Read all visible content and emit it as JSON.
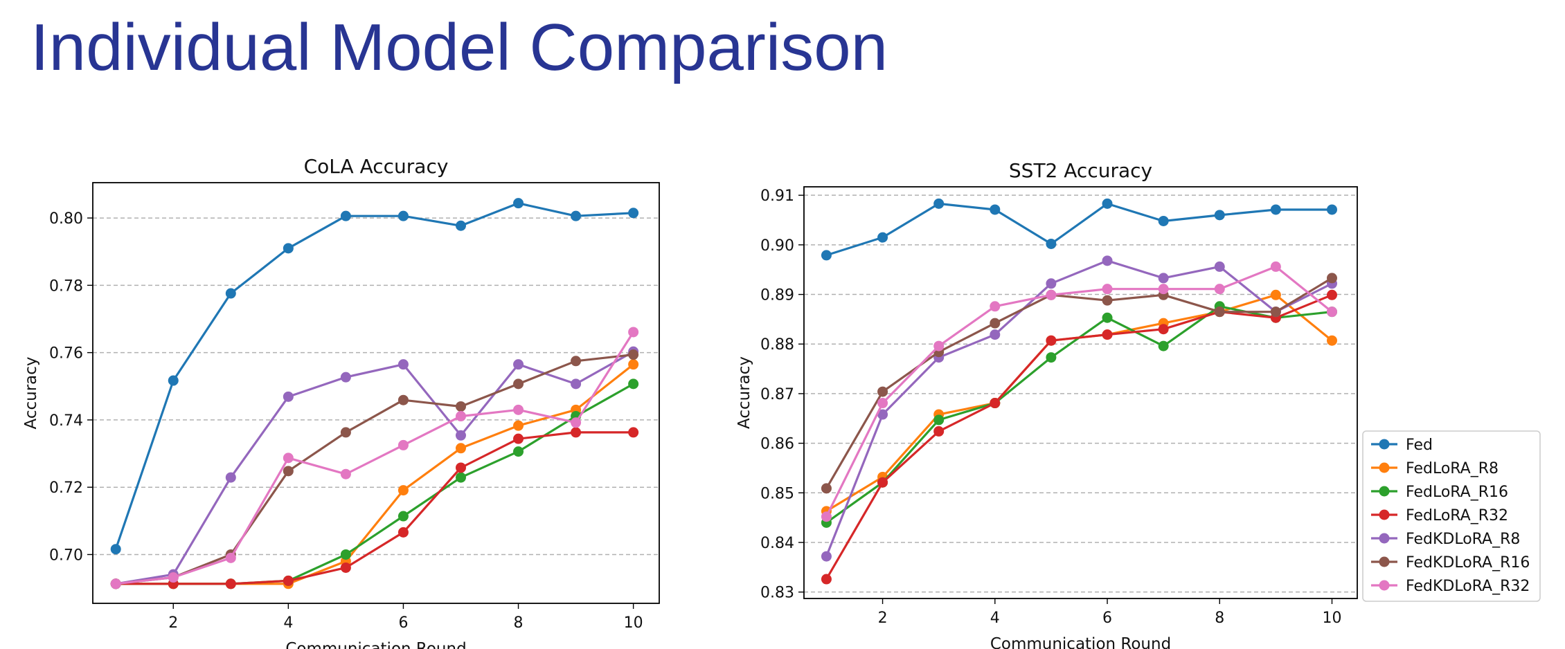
{
  "slide": {
    "title": "Individual Model Comparison"
  },
  "legend": {
    "placement": "right of SST2 chart, lower"
  },
  "chart_data": [
    {
      "type": "line",
      "title": "CoLA Accuracy",
      "xlabel": "Communication Round",
      "ylabel": "Accuracy",
      "x": [
        1,
        2,
        3,
        4,
        5,
        6,
        7,
        8,
        9,
        10
      ],
      "xlim": [
        0.6,
        10.45
      ],
      "ylim": [
        0.6855,
        0.8105
      ],
      "xticks": [
        2,
        4,
        6,
        8,
        10
      ],
      "yticks": [
        0.7,
        0.72,
        0.74,
        0.76,
        0.78,
        0.8
      ],
      "ytick_labels": [
        "0.70",
        "0.72",
        "0.74",
        "0.76",
        "0.78",
        "0.80"
      ],
      "grid": "horizontal dashed",
      "series": [
        {
          "name": "Fed",
          "color": "#1f77b4",
          "values": [
            0.7016,
            0.7517,
            0.7776,
            0.791,
            0.8006,
            0.8006,
            0.7977,
            0.8044,
            0.8006,
            0.8015
          ]
        },
        {
          "name": "FedLoRA_R8",
          "color": "#ff7f0e",
          "values": [
            0.6913,
            0.6913,
            0.6913,
            0.6913,
            0.698,
            0.7191,
            0.7316,
            0.7383,
            0.743,
            0.7565
          ]
        },
        {
          "name": "FedLoRA_R16",
          "color": "#2ca02c",
          "values": [
            0.6913,
            0.6913,
            0.6913,
            0.6922,
            0.7,
            0.7114,
            0.7229,
            0.7306,
            0.7411,
            0.7507
          ]
        },
        {
          "name": "FedLoRA_R32",
          "color": "#d62728",
          "values": [
            0.6913,
            0.6913,
            0.6913,
            0.6922,
            0.6961,
            0.7066,
            0.7258,
            0.7344,
            0.7363,
            0.7363
          ]
        },
        {
          "name": "FedKDLoRA_R8",
          "color": "#9467bd",
          "values": [
            0.6913,
            0.6941,
            0.7229,
            0.7469,
            0.7527,
            0.7565,
            0.7354,
            0.7565,
            0.7507,
            0.7603
          ]
        },
        {
          "name": "FedKDLoRA_R16",
          "color": "#8c564b",
          "values": [
            0.6913,
            0.6932,
            0.7,
            0.7248,
            0.7363,
            0.7459,
            0.744,
            0.7507,
            0.7575,
            0.7594
          ]
        },
        {
          "name": "FedKDLoRA_R32",
          "color": "#e377c2",
          "values": [
            0.6913,
            0.6932,
            0.699,
            0.7287,
            0.7239,
            0.7325,
            0.7411,
            0.743,
            0.7392,
            0.7661
          ]
        }
      ]
    },
    {
      "type": "line",
      "title": "SST2 Accuracy",
      "xlabel": "Communication Round",
      "ylabel": "Accuracy",
      "x": [
        1,
        2,
        3,
        4,
        5,
        6,
        7,
        8,
        9,
        10
      ],
      "xlim": [
        0.6,
        10.45
      ],
      "ylim": [
        0.8287,
        0.9117
      ],
      "xticks": [
        2,
        4,
        6,
        8,
        10
      ],
      "yticks": [
        0.83,
        0.84,
        0.85,
        0.86,
        0.87,
        0.88,
        0.89,
        0.9,
        0.91
      ],
      "ytick_labels": [
        "0.83",
        "0.84",
        "0.85",
        "0.86",
        "0.87",
        "0.88",
        "0.89",
        "0.90",
        "0.91"
      ],
      "grid": "horizontal dashed",
      "series": [
        {
          "name": "Fed",
          "color": "#1f77b4",
          "values": [
            0.8979,
            0.9015,
            0.9083,
            0.9071,
            0.9002,
            0.9083,
            0.9048,
            0.906,
            0.9071,
            0.9071
          ]
        },
        {
          "name": "FedLoRA_R8",
          "color": "#ff7f0e",
          "values": [
            0.8463,
            0.8532,
            0.8658,
            0.8681,
            0.8807,
            0.8819,
            0.8842,
            0.8865,
            0.8899,
            0.8807
          ]
        },
        {
          "name": "FedLoRA_R16",
          "color": "#2ca02c",
          "values": [
            0.844,
            0.8521,
            0.8647,
            0.8681,
            0.8773,
            0.8853,
            0.8796,
            0.8876,
            0.8853,
            0.8865
          ]
        },
        {
          "name": "FedLoRA_R32",
          "color": "#d62728",
          "values": [
            0.8326,
            0.8521,
            0.8624,
            0.8681,
            0.8807,
            0.8819,
            0.883,
            0.8865,
            0.8853,
            0.8899
          ]
        },
        {
          "name": "FedKDLoRA_R8",
          "color": "#9467bd",
          "values": [
            0.8372,
            0.8658,
            0.8773,
            0.8819,
            0.8922,
            0.8968,
            0.8933,
            0.8956,
            0.8865,
            0.8922
          ]
        },
        {
          "name": "FedKDLoRA_R16",
          "color": "#8c564b",
          "values": [
            0.8509,
            0.8704,
            0.8784,
            0.8842,
            0.8899,
            0.8888,
            0.8899,
            0.8865,
            0.8865,
            0.8933
          ]
        },
        {
          "name": "FedKDLoRA_R32",
          "color": "#e377c2",
          "values": [
            0.8452,
            0.8681,
            0.8796,
            0.8876,
            0.8899,
            0.8911,
            0.8911,
            0.8911,
            0.8956,
            0.8865
          ]
        }
      ]
    }
  ]
}
